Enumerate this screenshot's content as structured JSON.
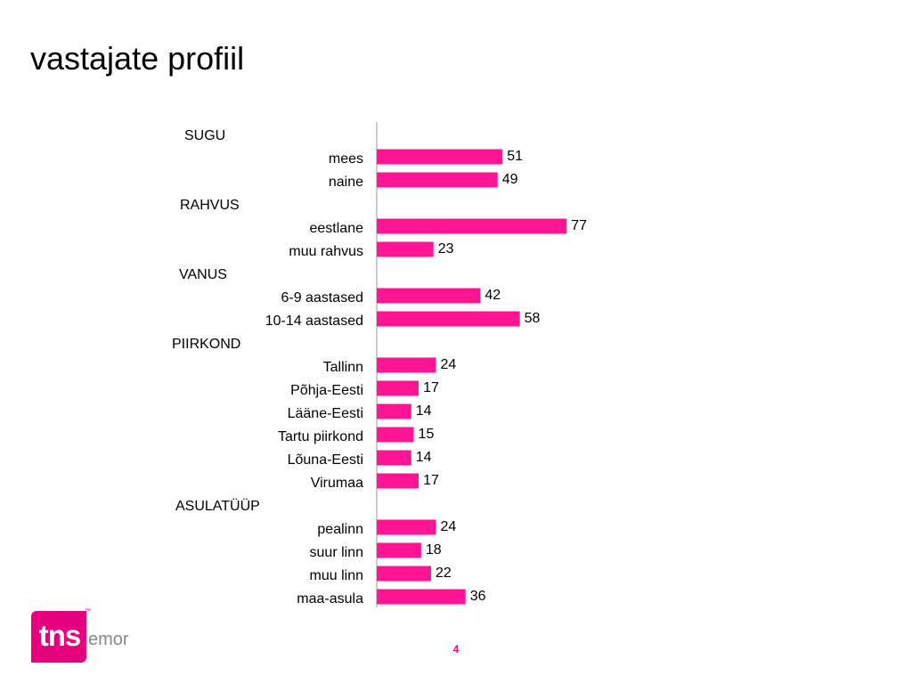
{
  "page": {
    "title": "vastajate profiil",
    "page_number": "4",
    "logo": {
      "text": "tns",
      "suffix": "emor",
      "trademark": "™"
    }
  },
  "colors": {
    "bar": "#ff1493",
    "axis": "#bbbbbb",
    "brand": "#e6007e"
  },
  "chart_data": {
    "type": "bar",
    "orientation": "horizontal",
    "grid": false,
    "xlim": [
      0,
      100
    ],
    "rows": [
      {
        "kind": "group",
        "label": "SUGU"
      },
      {
        "kind": "item",
        "label": "mees",
        "value": 51
      },
      {
        "kind": "item",
        "label": "naine",
        "value": 49
      },
      {
        "kind": "group",
        "label": "RAHVUS"
      },
      {
        "kind": "item",
        "label": "eestlane",
        "value": 77
      },
      {
        "kind": "item",
        "label": "muu rahvus",
        "value": 23
      },
      {
        "kind": "group",
        "label": "VANUS"
      },
      {
        "kind": "item",
        "label": "6-9 aastased",
        "value": 42
      },
      {
        "kind": "item",
        "label": "10-14 aastased",
        "value": 58
      },
      {
        "kind": "group",
        "label": "PIIRKOND"
      },
      {
        "kind": "item",
        "label": "Tallinn",
        "value": 24
      },
      {
        "kind": "item",
        "label": "Põhja-Eesti",
        "value": 17
      },
      {
        "kind": "item",
        "label": "Lääne-Eesti",
        "value": 14
      },
      {
        "kind": "item",
        "label": "Tartu piirkond",
        "value": 15
      },
      {
        "kind": "item",
        "label": "Lõuna-Eesti",
        "value": 14
      },
      {
        "kind": "item",
        "label": "Virumaa",
        "value": 17
      },
      {
        "kind": "group",
        "label": "ASULATÜÜP"
      },
      {
        "kind": "item",
        "label": "pealinn",
        "value": 24
      },
      {
        "kind": "item",
        "label": "suur linn",
        "value": 18
      },
      {
        "kind": "item",
        "label": "muu linn",
        "value": 22
      },
      {
        "kind": "item",
        "label": "maa-asula",
        "value": 36
      }
    ]
  }
}
